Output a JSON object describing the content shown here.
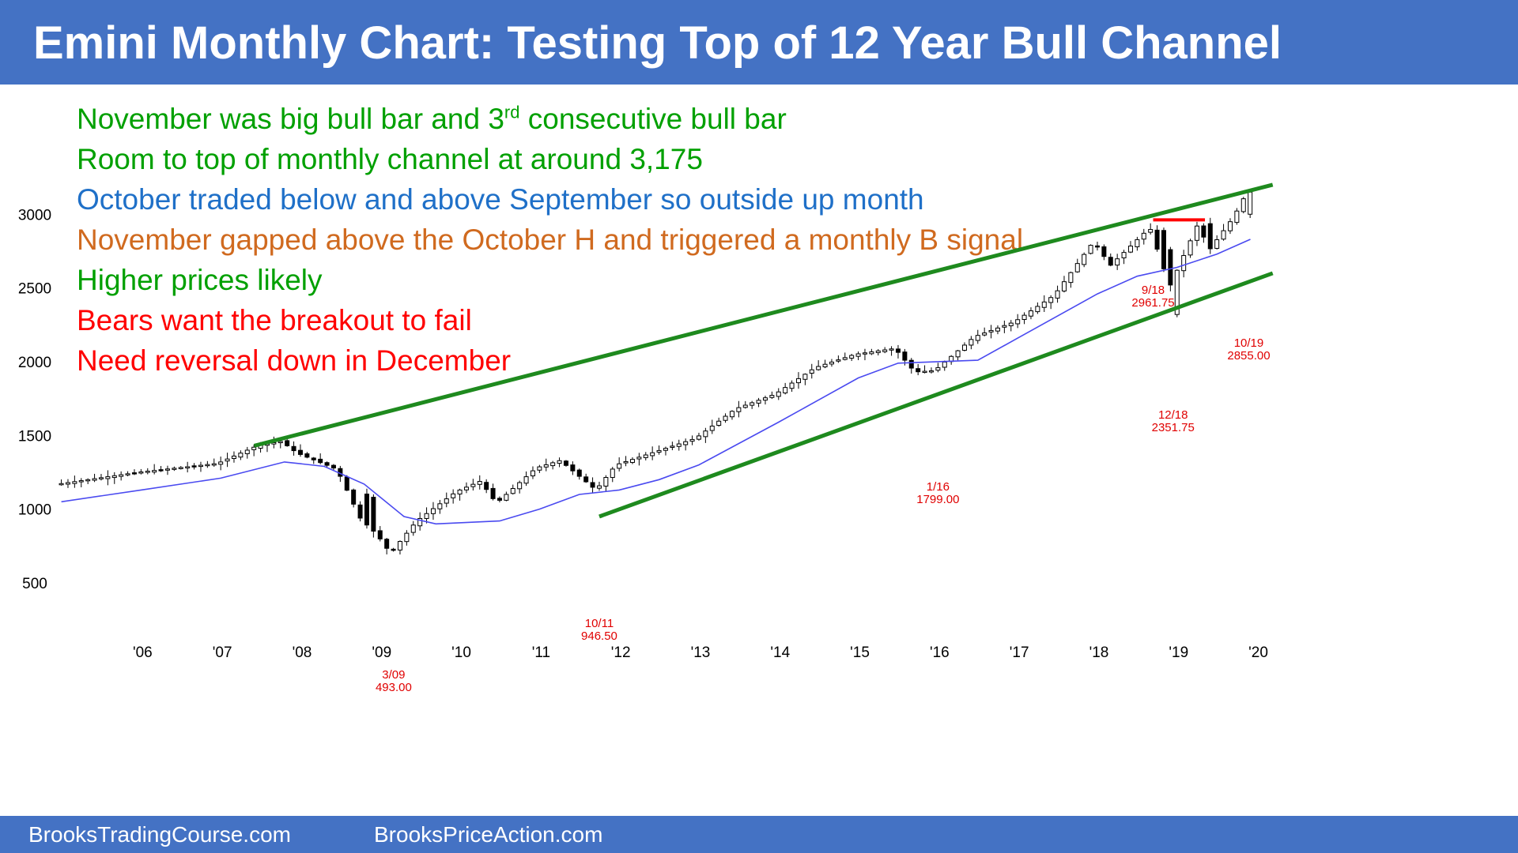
{
  "title": "Emini Monthly Chart: Testing Top of 12 Year Bull Channel",
  "notes": [
    {
      "text": "November was big bull bar and 3",
      "sup": "rd",
      "tail": " consecutive bull bar",
      "color": "#00A000"
    },
    {
      "text": "Room to top of monthly channel at around 3,175",
      "color": "#00A000"
    },
    {
      "text": "October traded below and above September so outside up month",
      "color": "#1F70C8"
    },
    {
      "text": "November gapped above the October H and triggered a monthly B signal",
      "color": "#D06A1F"
    },
    {
      "text": "Higher prices likely",
      "color": "#00A000"
    },
    {
      "text": "Bears want the breakout to fail",
      "color": "#FF0000"
    },
    {
      "text": "Need reversal down in December",
      "color": "#FF0000"
    }
  ],
  "footer": {
    "left": "BrooksTradingCourse.com",
    "right": "BrooksPriceAction.com"
  },
  "colors": {
    "header_bg": "#4472C4",
    "bull_candle": "#ffffff",
    "bear_candle": "#000000",
    "moving_average": "#4A4AF0",
    "channel_lines": "#1E8A1E",
    "resistance_line": "#FF0000",
    "annotations": "#E00000"
  },
  "chart_data": {
    "type": "candlestick",
    "timeframe": "monthly",
    "x_ticks": [
      "'06",
      "'07",
      "'08",
      "'09",
      "'10",
      "'11",
      "'12",
      "'13",
      "'14",
      "'15",
      "'16",
      "'17",
      "'18",
      "'19",
      "'20"
    ],
    "y_ticks": [
      500,
      1000,
      1500,
      2000,
      2500,
      3000
    ],
    "ylim": [
      300,
      3400
    ],
    "annotations": [
      {
        "date": "3/09",
        "value": "493.00"
      },
      {
        "date": "10/11",
        "value": "946.50"
      },
      {
        "date": "1/16",
        "value": "1799.00"
      },
      {
        "date": "12/18",
        "value": "2351.75"
      },
      {
        "date": "9/18",
        "value": "2961.75"
      },
      {
        "date": "10/19",
        "value": "2855.00"
      }
    ],
    "anchors": [
      {
        "t": 2005.0,
        "p": 1170
      },
      {
        "t": 2006.0,
        "p": 1250
      },
      {
        "t": 2007.0,
        "p": 1310
      },
      {
        "t": 2007.5,
        "p": 1430
      },
      {
        "t": 2007.8,
        "p": 1460
      },
      {
        "t": 2008.0,
        "p": 1380
      },
      {
        "t": 2008.5,
        "p": 1270
      },
      {
        "t": 2008.8,
        "p": 930
      },
      {
        "t": 2009.0,
        "p": 830
      },
      {
        "t": 2009.17,
        "p": 700
      },
      {
        "t": 2009.5,
        "p": 920
      },
      {
        "t": 2010.0,
        "p": 1120
      },
      {
        "t": 2010.3,
        "p": 1190
      },
      {
        "t": 2010.5,
        "p": 1040
      },
      {
        "t": 2011.0,
        "p": 1280
      },
      {
        "t": 2011.3,
        "p": 1330
      },
      {
        "t": 2011.75,
        "p": 1130
      },
      {
        "t": 2012.0,
        "p": 1300
      },
      {
        "t": 2012.5,
        "p": 1390
      },
      {
        "t": 2013.0,
        "p": 1480
      },
      {
        "t": 2013.5,
        "p": 1680
      },
      {
        "t": 2014.0,
        "p": 1780
      },
      {
        "t": 2014.5,
        "p": 1960
      },
      {
        "t": 2015.0,
        "p": 2050
      },
      {
        "t": 2015.5,
        "p": 2090
      },
      {
        "t": 2015.75,
        "p": 1930
      },
      {
        "t": 2016.0,
        "p": 1940
      },
      {
        "t": 2016.5,
        "p": 2170
      },
      {
        "t": 2017.0,
        "p": 2270
      },
      {
        "t": 2017.5,
        "p": 2450
      },
      {
        "t": 2018.0,
        "p": 2820
      },
      {
        "t": 2018.2,
        "p": 2650
      },
      {
        "t": 2018.7,
        "p": 2910
      },
      {
        "t": 2018.95,
        "p": 2510
      },
      {
        "t": 2019.3,
        "p": 2930
      },
      {
        "t": 2019.45,
        "p": 2760
      },
      {
        "t": 2019.75,
        "p": 2980
      },
      {
        "t": 2019.92,
        "p": 3150
      }
    ],
    "moving_average": [
      {
        "t": 2005.0,
        "p": 1050
      },
      {
        "t": 2006.0,
        "p": 1130
      },
      {
        "t": 2007.0,
        "p": 1210
      },
      {
        "t": 2007.8,
        "p": 1320
      },
      {
        "t": 2008.3,
        "p": 1290
      },
      {
        "t": 2008.8,
        "p": 1170
      },
      {
        "t": 2009.3,
        "p": 950
      },
      {
        "t": 2009.7,
        "p": 900
      },
      {
        "t": 2010.5,
        "p": 920
      },
      {
        "t": 2011.0,
        "p": 1000
      },
      {
        "t": 2011.5,
        "p": 1100
      },
      {
        "t": 2012.0,
        "p": 1130
      },
      {
        "t": 2012.5,
        "p": 1200
      },
      {
        "t": 2013.0,
        "p": 1300
      },
      {
        "t": 2014.0,
        "p": 1590
      },
      {
        "t": 2015.0,
        "p": 1890
      },
      {
        "t": 2015.5,
        "p": 1990
      },
      {
        "t": 2016.0,
        "p": 2000
      },
      {
        "t": 2016.5,
        "p": 2010
      },
      {
        "t": 2017.0,
        "p": 2160
      },
      {
        "t": 2018.0,
        "p": 2460
      },
      {
        "t": 2018.5,
        "p": 2580
      },
      {
        "t": 2019.0,
        "p": 2640
      },
      {
        "t": 2019.5,
        "p": 2730
      },
      {
        "t": 2019.92,
        "p": 2830
      }
    ],
    "bull_channel": {
      "upper": [
        {
          "t": 2007.42,
          "p": 1430
        },
        {
          "t": 2020.2,
          "p": 3200
        }
      ],
      "lower": [
        {
          "t": 2011.75,
          "p": 950
        },
        {
          "t": 2020.2,
          "p": 2600
        }
      ]
    },
    "resistance": {
      "from": 2018.7,
      "to": 2019.35,
      "p": 2962
    }
  }
}
